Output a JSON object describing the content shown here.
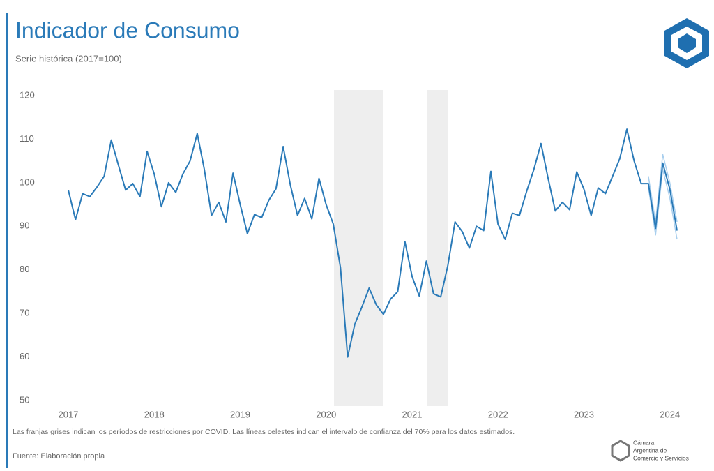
{
  "chart_data": {
    "type": "line",
    "title": "Indicador de Consumo",
    "subtitle": "Serie histórica (2017=100)",
    "note": "Las franjas grises indican los períodos de restricciones por COVID. Las líneas celestes indican el intervalo de confianza del 70% para los datos estimados.",
    "source": "Fuente: Elaboración propia",
    "brand": [
      "Cámara",
      "Argentina de",
      "Comercio y Servicios"
    ],
    "categories": [
      "2017",
      null,
      null,
      null,
      null,
      null,
      null,
      null,
      null,
      null,
      null,
      null,
      "2018",
      null,
      null,
      null,
      null,
      null,
      null,
      null,
      null,
      null,
      null,
      null,
      "2019",
      null,
      null,
      null,
      null,
      null,
      null,
      null,
      null,
      null,
      null,
      null,
      "2020",
      null,
      null,
      null,
      null,
      null,
      null,
      null,
      null,
      null,
      null,
      null,
      "2021",
      null,
      null,
      null,
      null,
      null,
      null,
      null,
      null,
      null,
      null,
      null,
      "2022",
      null,
      null,
      null,
      null,
      null,
      null,
      null,
      null,
      null,
      null,
      null,
      "2023",
      null,
      null,
      null,
      null,
      null,
      null,
      null,
      null,
      null,
      null,
      null,
      "2024",
      null
    ],
    "series": [
      {
        "color": "#2a7ab8",
        "values": [
          98.3,
          91.5,
          97.5,
          96.8,
          99,
          101.5,
          109.8,
          104,
          98.3,
          99.8,
          96.8,
          107.2,
          102,
          94.5,
          100,
          97.8,
          102,
          105,
          111.3,
          103,
          92.5,
          95.5,
          91,
          102.2,
          95,
          88.3,
          92.7,
          92,
          96,
          98.6,
          108.3,
          99.5,
          92.5,
          96.4,
          91.7,
          101,
          95,
          90.5,
          80.5,
          60,
          67.5,
          71.5,
          75.8,
          72,
          69.8,
          73.3,
          75,
          86.5,
          78.5,
          74,
          82,
          74.5,
          73.8,
          81,
          91,
          88.8,
          85,
          90,
          89,
          102.6,
          90.5,
          87,
          93,
          92.5,
          98,
          103,
          109,
          101,
          93.5,
          95.5,
          93.8,
          102.5,
          98.5,
          92.5,
          98.8,
          97.5,
          101.5,
          105.5,
          112.3,
          105,
          99.8,
          99.8,
          89.5,
          104.5,
          98.5,
          89
        ]
      },
      {
        "color": "#a9cfee",
        "values": [
          null,
          null,
          null,
          null,
          null,
          null,
          null,
          null,
          null,
          null,
          null,
          null,
          null,
          null,
          null,
          null,
          null,
          null,
          null,
          null,
          null,
          null,
          null,
          null,
          null,
          null,
          null,
          null,
          null,
          null,
          null,
          null,
          null,
          null,
          null,
          null,
          null,
          null,
          null,
          null,
          null,
          null,
          null,
          null,
          null,
          null,
          null,
          null,
          null,
          null,
          null,
          null,
          null,
          null,
          null,
          null,
          null,
          null,
          null,
          null,
          null,
          null,
          null,
          null,
          null,
          null,
          null,
          null,
          null,
          null,
          null,
          null,
          null,
          null,
          null,
          null,
          null,
          null,
          null,
          null,
          null,
          101.5,
          91,
          106.5,
          100,
          91
        ]
      },
      {
        "color": "#a9cfee",
        "values": [
          null,
          null,
          null,
          null,
          null,
          null,
          null,
          null,
          null,
          null,
          null,
          null,
          null,
          null,
          null,
          null,
          null,
          null,
          null,
          null,
          null,
          null,
          null,
          null,
          null,
          null,
          null,
          null,
          null,
          null,
          null,
          null,
          null,
          null,
          null,
          null,
          null,
          null,
          null,
          null,
          null,
          null,
          null,
          null,
          null,
          null,
          null,
          null,
          null,
          null,
          null,
          null,
          null,
          null,
          null,
          null,
          null,
          null,
          null,
          null,
          null,
          null,
          null,
          null,
          null,
          null,
          null,
          null,
          null,
          null,
          null,
          null,
          null,
          null,
          null,
          null,
          null,
          null,
          null,
          null,
          null,
          99,
          88,
          103,
          96.5,
          87
        ]
      }
    ],
    "ylim": [
      50,
      120
    ],
    "yticks": [
      50,
      60,
      70,
      80,
      90,
      100,
      110,
      120
    ],
    "grid": false
  }
}
